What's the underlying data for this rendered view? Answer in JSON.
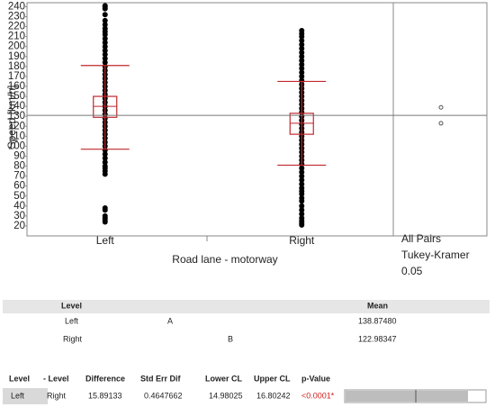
{
  "chart_data": {
    "type": "oneway",
    "y_label": "Speed [km/h]",
    "x_label": "Road lane - motorway",
    "categories": [
      "Left",
      "Right"
    ],
    "ylim": [
      10,
      244
    ],
    "yticks": [
      20,
      30,
      40,
      50,
      60,
      70,
      80,
      90,
      100,
      110,
      120,
      130,
      140,
      150,
      160,
      170,
      180,
      190,
      200,
      210,
      220,
      230,
      240
    ],
    "grand_mean": 131,
    "point_color": "#000000",
    "box_color": "#c0282d",
    "points": [
      [
        24,
        26,
        28,
        30,
        36,
        38,
        72,
        75,
        78,
        80,
        84,
        88,
        92,
        96,
        100,
        104,
        108,
        112,
        116,
        120,
        124,
        128,
        132,
        136,
        140,
        144,
        148,
        152,
        156,
        160,
        164,
        168,
        172,
        176,
        180,
        184,
        188,
        192,
        196,
        200,
        204,
        208,
        212,
        215,
        218,
        222,
        226,
        232,
        238,
        240,
        241
      ],
      [
        21,
        23,
        25,
        28,
        32,
        36,
        40,
        45,
        48,
        52,
        55,
        58,
        62,
        66,
        70,
        74,
        78,
        82,
        86,
        90,
        94,
        98,
        102,
        106,
        110,
        114,
        118,
        122,
        126,
        130,
        134,
        138,
        142,
        146,
        150,
        154,
        158,
        162,
        166,
        170,
        174,
        178,
        182,
        186,
        190,
        194,
        198,
        202,
        206,
        210,
        213,
        216
      ]
    ],
    "boxes": [
      {
        "q1": 129,
        "median": 140,
        "q3": 150,
        "whisker_low": 97,
        "whisker_high": 181
      },
      {
        "q1": 112,
        "median": 123,
        "q3": 133,
        "whisker_low": 81,
        "whisker_high": 165
      }
    ],
    "comparison": {
      "labels": [
        "All Pairs",
        "Tukey-Kramer",
        "0.05"
      ],
      "circles": [
        139,
        123
      ]
    }
  },
  "level_table": {
    "headers": [
      "Level",
      "Mean"
    ],
    "rows": [
      {
        "level": "Left",
        "letter": "A",
        "mean": "138.87480"
      },
      {
        "level": "Right",
        "letter": "B",
        "mean": "122.98347"
      }
    ]
  },
  "diff_table": {
    "headers": [
      "Level",
      "- Level",
      "Difference",
      "Std Err Dif",
      "Lower CL",
      "Upper CL",
      "p-Value"
    ],
    "row": [
      "Left",
      "Right",
      "15.89133",
      "0.4647662",
      "14.98025",
      "16.80242",
      "<0.0001*"
    ]
  }
}
